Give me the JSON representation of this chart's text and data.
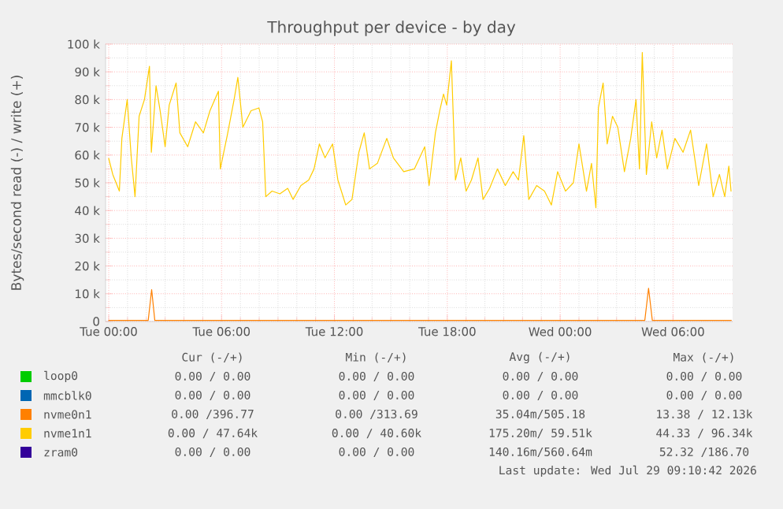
{
  "chart_data": {
    "type": "line",
    "title": "Throughput per device - by day",
    "ylabel": "Bytes/second read (-) / write (+)",
    "xlim": [
      "2026-07-27T23:50",
      "2026-07-29T09:10"
    ],
    "ylim": [
      0,
      100000
    ],
    "xticks": [
      {
        "value": "2026-07-28T00:00",
        "label": "Tue 00:00"
      },
      {
        "value": "2026-07-28T06:00",
        "label": "Tue 06:00"
      },
      {
        "value": "2026-07-28T12:00",
        "label": "Tue 12:00"
      },
      {
        "value": "2026-07-28T18:00",
        "label": "Tue 18:00"
      },
      {
        "value": "2026-07-29T00:00",
        "label": "Wed 00:00"
      },
      {
        "value": "2026-07-29T06:00",
        "label": "Wed 06:00"
      }
    ],
    "yticks": [
      0,
      {
        "value": 10000,
        "label": "10 k"
      },
      {
        "value": 20000,
        "label": "20 k"
      },
      {
        "value": 30000,
        "label": "30 k"
      },
      {
        "value": 40000,
        "label": "40 k"
      },
      {
        "value": 50000,
        "label": "50 k"
      },
      {
        "value": 60000,
        "label": "60 k"
      },
      {
        "value": 70000,
        "label": "70 k"
      },
      {
        "value": 80000,
        "label": "80 k"
      },
      {
        "value": 90000,
        "label": "90 k"
      },
      {
        "value": 100000,
        "label": "100 k"
      }
    ],
    "grid": true,
    "legend": "bottom",
    "series": [
      {
        "name": "loop0",
        "color": "#00cc00"
      },
      {
        "name": "mmcblk0",
        "color": "#0066b3"
      },
      {
        "name": "nvme0n1",
        "color": "#ff8000",
        "x": [
          "2026-07-28T00:00",
          "2026-07-28T02:06",
          "2026-07-28T02:17",
          "2026-07-28T02:27",
          "2026-07-29T04:30",
          "2026-07-29T04:42",
          "2026-07-29T04:54",
          "2026-07-29T09:06"
        ],
        "values": [
          400,
          400,
          11500,
          400,
          400,
          12000,
          400,
          400
        ]
      },
      {
        "name": "nvme1n1",
        "color": "#ffcc00",
        "x": [
          "2026-07-28T00:00",
          "2026-07-28T00:13",
          "2026-07-28T00:34",
          "2026-07-28T00:42",
          "2026-07-28T00:59",
          "2026-07-28T01:12",
          "2026-07-28T01:24",
          "2026-07-28T01:37",
          "2026-07-28T01:54",
          "2026-07-28T02:10",
          "2026-07-28T02:16",
          "2026-07-28T02:31",
          "2026-07-28T02:44",
          "2026-07-28T03:00",
          "2026-07-28T03:13",
          "2026-07-28T03:35",
          "2026-07-28T03:47",
          "2026-07-28T04:12",
          "2026-07-28T04:37",
          "2026-07-28T05:02",
          "2026-07-28T05:23",
          "2026-07-28T05:50",
          "2026-07-28T05:56",
          "2026-07-28T06:18",
          "2026-07-28T06:40",
          "2026-07-28T06:52",
          "2026-07-28T07:08",
          "2026-07-28T07:34",
          "2026-07-28T07:59",
          "2026-07-28T08:11",
          "2026-07-28T08:21",
          "2026-07-28T08:41",
          "2026-07-28T09:06",
          "2026-07-28T09:31",
          "2026-07-28T09:48",
          "2026-07-28T10:13",
          "2026-07-28T10:38",
          "2026-07-28T10:55",
          "2026-07-28T11:12",
          "2026-07-28T11:30",
          "2026-07-28T11:54",
          "2026-07-28T12:11",
          "2026-07-28T12:36",
          "2026-07-28T12:56",
          "2026-07-28T13:18",
          "2026-07-28T13:35",
          "2026-07-28T13:52",
          "2026-07-28T14:17",
          "2026-07-28T14:47",
          "2026-07-28T15:08",
          "2026-07-28T15:41",
          "2026-07-28T16:15",
          "2026-07-28T16:48",
          "2026-07-28T17:02",
          "2026-07-28T17:22",
          "2026-07-28T17:36",
          "2026-07-28T17:48",
          "2026-07-28T17:58",
          "2026-07-28T18:13",
          "2026-07-28T18:26",
          "2026-07-28T18:43",
          "2026-07-28T19:00",
          "2026-07-28T19:17",
          "2026-07-28T19:38",
          "2026-07-28T19:54",
          "2026-07-28T20:15",
          "2026-07-28T20:40",
          "2026-07-28T21:05",
          "2026-07-28T21:30",
          "2026-07-28T21:47",
          "2026-07-28T22:04",
          "2026-07-28T22:20",
          "2026-07-28T22:45",
          "2026-07-28T23:10",
          "2026-07-28T23:32",
          "2026-07-28T23:52",
          "2026-07-29T00:17",
          "2026-07-29T00:42",
          "2026-07-29T01:00",
          "2026-07-29T01:24",
          "2026-07-29T01:40",
          "2026-07-29T01:54",
          "2026-07-29T02:02",
          "2026-07-29T02:17",
          "2026-07-29T02:30",
          "2026-07-29T02:47",
          "2026-07-29T03:04",
          "2026-07-29T03:25",
          "2026-07-29T03:45",
          "2026-07-29T04:02",
          "2026-07-29T04:13",
          "2026-07-29T04:22",
          "2026-07-29T04:35",
          "2026-07-29T04:52",
          "2026-07-29T05:08",
          "2026-07-29T05:25",
          "2026-07-29T05:42",
          "2026-07-29T06:06",
          "2026-07-29T06:32",
          "2026-07-29T06:56",
          "2026-07-29T07:22",
          "2026-07-29T07:47",
          "2026-07-29T08:08",
          "2026-07-29T08:28",
          "2026-07-29T08:45",
          "2026-07-29T08:58",
          "2026-07-29T09:05"
        ],
        "values": [
          58800,
          53000,
          47000,
          66000,
          80000,
          59000,
          45000,
          74000,
          80000,
          92000,
          61000,
          85000,
          76000,
          63000,
          78000,
          86000,
          68000,
          63000,
          72000,
          68000,
          76000,
          83000,
          55000,
          67000,
          80000,
          88000,
          70000,
          76000,
          77000,
          72000,
          45000,
          47000,
          46000,
          48000,
          44000,
          49000,
          51000,
          55000,
          64000,
          59000,
          64000,
          51000,
          42000,
          44000,
          61000,
          68000,
          55000,
          57000,
          66000,
          59000,
          54000,
          55000,
          63000,
          49000,
          68000,
          76000,
          82000,
          78000,
          94000,
          51000,
          59000,
          47000,
          51000,
          59000,
          44000,
          48000,
          55000,
          49000,
          54000,
          51000,
          67000,
          44000,
          49000,
          47000,
          42000,
          54000,
          47000,
          50000,
          64000,
          47000,
          57000,
          41000,
          77000,
          86000,
          64000,
          74000,
          70000,
          54000,
          66000,
          80000,
          55000,
          97000,
          53000,
          72000,
          59000,
          69000,
          55000,
          66000,
          61000,
          69000,
          49000,
          64000,
          45000,
          53000,
          45000,
          56000,
          47000
        ]
      },
      {
        "name": "zram0",
        "color": "#330099"
      }
    ],
    "annotations": [
      "Cur (-/+)",
      "Min (-/+)",
      "Avg (-/+)",
      "Max (-/+)",
      "0.00 /  0.00",
      "0.00 /  0.00",
      "0.00 /  0.00",
      "0.00 /  0.00",
      "0.00 /  0.00",
      "0.00 /  0.00",
      "0.00 /  0.00",
      "0.00 /  0.00",
      "0.00 /396.77",
      "0.00 /313.69",
      "35.04m/505.18",
      "13.38 / 12.13k",
      "0.00 / 47.64k",
      "0.00 / 40.60k",
      "175.20m/ 59.51k",
      "44.33 / 96.34k",
      "0.00 /  0.00",
      "0.00 /  0.00",
      "140.16m/560.64m",
      "52.32 /186.70",
      "Last update: Wed Jul 29 09:10:42 2026"
    ]
  }
}
